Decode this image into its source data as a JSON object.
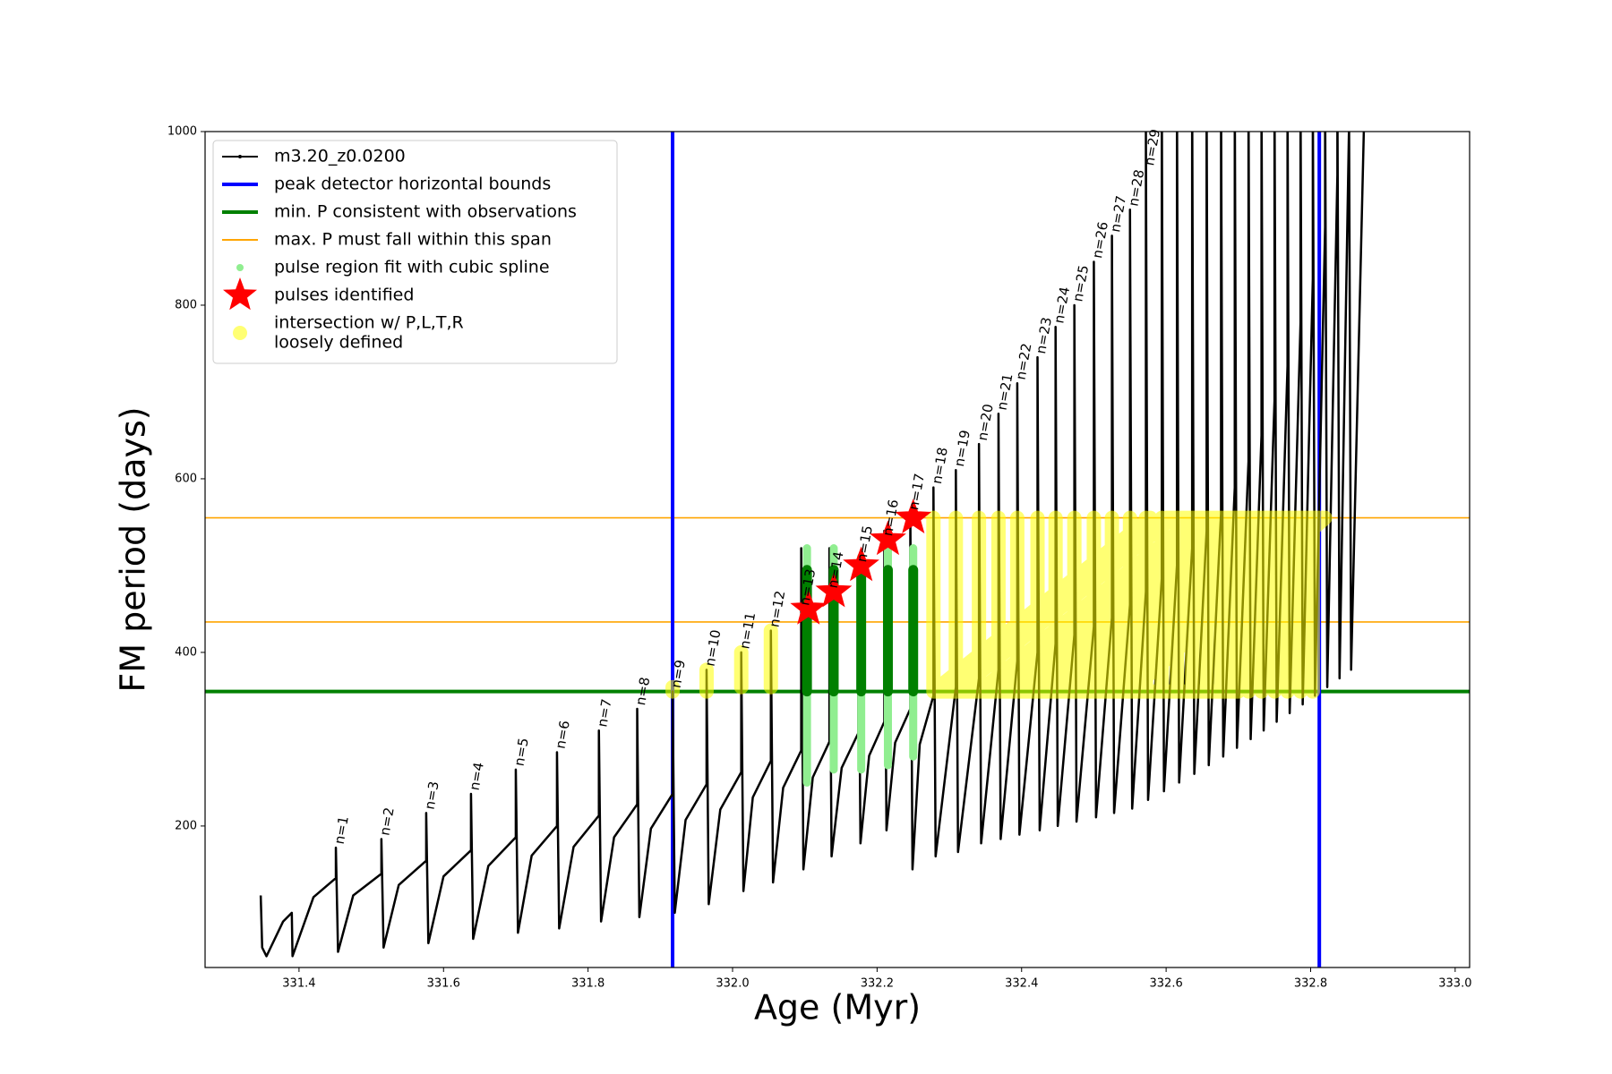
{
  "chart_data": {
    "type": "line",
    "xlabel": "Age (Myr)",
    "ylabel": "FM period (days)",
    "xlim": [
      331.27,
      333.02
    ],
    "ylim": [
      37,
      1000
    ],
    "xticks": [
      331.4,
      331.6,
      331.8,
      {
        "value": 332,
        "label": "332.0"
      },
      332.2,
      332.4,
      332.6,
      332.8,
      {
        "value": 333,
        "label": "333.0"
      }
    ],
    "yticks": [
      200,
      400,
      600,
      800,
      1000
    ],
    "legend": "upper left",
    "series": [
      {
        "name": "m3.20_z0.0200",
        "kind": "line",
        "color": "#000000",
        "x": [
          331.347,
          331.349,
          331.355,
          331.378,
          331.39,
          331.391,
          331.42,
          331.451,
          331.451,
          331.454,
          331.475,
          331.514,
          331.514,
          331.517,
          331.538,
          331.576,
          331.576,
          331.579,
          331.6,
          331.638,
          331.638,
          331.641,
          331.662,
          331.7,
          331.7,
          331.703,
          331.722,
          331.757,
          331.757,
          331.76,
          331.78,
          331.815,
          331.815,
          331.818,
          331.836,
          331.868,
          331.868,
          331.871,
          331.887,
          331.917,
          331.917,
          331.92,
          331.935,
          331.964,
          331.964,
          331.967,
          331.983,
          332.012,
          332.012,
          332.015,
          332.028,
          332.053,
          332.053,
          332.056,
          332.07,
          332.095,
          332.095,
          332.098,
          332.111,
          332.134,
          332.134,
          332.137,
          332.151,
          332.174,
          332.174,
          332.177,
          332.189,
          332.21,
          332.21,
          332.213,
          332.225,
          332.246,
          332.246,
          332.249,
          332.259,
          332.278,
          332.278,
          332.281,
          332.309,
          332.309,
          332.312,
          332.341,
          332.341,
          332.344,
          332.368,
          332.368,
          332.371,
          332.394,
          332.394,
          332.397,
          332.422,
          332.422,
          332.425,
          332.447,
          332.447,
          332.45,
          332.473,
          332.473,
          332.476,
          332.5,
          332.5,
          332.503,
          332.525,
          332.525,
          332.528,
          332.55,
          332.55,
          332.553,
          332.572,
          332.572,
          332.575,
          332.594,
          332.594,
          332.597,
          332.615,
          332.615,
          332.618,
          332.636,
          332.636,
          332.639,
          332.656,
          332.656,
          332.659,
          332.676,
          332.676,
          332.679,
          332.695,
          332.695,
          332.698,
          332.714,
          332.714,
          332.717,
          332.732,
          332.732,
          332.735,
          332.75,
          332.75,
          332.753,
          332.768,
          332.768,
          332.771,
          332.786,
          332.786,
          332.789,
          332.803,
          332.803,
          332.806,
          332.82,
          332.82,
          332.823,
          332.837,
          332.837,
          332.84,
          332.853,
          332.853,
          332.856,
          332.875
        ],
        "y": [
          120,
          60,
          50,
          90,
          100,
          50,
          118,
          140,
          175,
          55,
          120,
          145,
          185,
          60,
          132,
          160,
          215,
          65,
          142,
          172,
          237,
          70,
          154,
          187,
          265,
          77,
          166,
          200,
          285,
          82,
          176,
          212,
          310,
          90,
          187,
          225,
          335,
          95,
          197,
          237,
          355,
          100,
          207,
          248,
          380,
          110,
          219,
          262,
          400,
          125,
          233,
          275,
          425,
          135,
          244,
          287,
          520,
          150,
          256,
          297,
          520,
          165,
          267,
          307,
          500,
          180,
          281,
          320,
          540,
          195,
          296,
          335,
          560,
          150,
          294,
          350,
          590,
          165,
          360,
          610,
          170,
          370,
          640,
          180,
          380,
          675,
          185,
          390,
          710,
          190,
          400,
          740,
          195,
          410,
          775,
          200,
          420,
          800,
          205,
          430,
          850,
          210,
          440,
          880,
          215,
          455,
          910,
          220,
          470,
          1000,
          230,
          485,
          1050,
          240,
          500,
          1050,
          250,
          520,
          1050,
          260,
          540,
          1050,
          270,
          560,
          1050,
          280,
          590,
          1050,
          290,
          620,
          1050,
          300,
          650,
          1050,
          310,
          690,
          1050,
          320,
          730,
          1050,
          330,
          780,
          1050,
          340,
          830,
          1050,
          350,
          890,
          1050,
          360,
          950,
          1050,
          370,
          1000,
          1050,
          380,
          1050
        ]
      },
      {
        "name": "peak detector horizontal bounds",
        "kind": "vline",
        "color": "#0000ff",
        "x": [
          331.917,
          332.812
        ]
      },
      {
        "name": "min. P consistent with observations",
        "kind": "hline",
        "color": "#008000",
        "y": [
          355
        ]
      },
      {
        "name": "max. P must fall within this span",
        "kind": "hline",
        "color": "#ffa500",
        "y": [
          435,
          555
        ]
      },
      {
        "name": "pulse region fit with cubic spline",
        "kind": "segments",
        "marker": "dot",
        "color": "#90ee90",
        "x": [
          332.103,
          332.103,
          null,
          332.14,
          332.14,
          null,
          332.178,
          332.178,
          null,
          332.215,
          332.215,
          null,
          332.25,
          332.25
        ],
        "y": [
          250,
          520,
          null,
          265,
          520,
          null,
          265,
          510,
          null,
          270,
          520,
          null,
          280,
          520
        ]
      },
      {
        "name": "pulses identified",
        "kind": "star",
        "color": "#ff0000",
        "x": [
          332.105,
          332.14,
          332.178,
          332.215,
          332.25
        ],
        "y": [
          450,
          470,
          500,
          530,
          555
        ]
      },
      {
        "name": [
          "intersection w/ P,L,T,R",
          "loosely defined"
        ],
        "kind": "segments",
        "marker": "circle",
        "color": "#ffff00",
        "alpha": 0.55,
        "x": [
          331.917,
          331.917,
          null,
          331.964,
          331.964,
          null,
          332.012,
          332.012,
          null,
          332.053,
          332.053,
          null,
          332.278,
          332.278,
          null,
          332.309,
          332.309,
          null,
          332.341,
          332.341,
          null,
          332.368,
          332.368,
          null,
          332.394,
          332.394,
          null,
          332.422,
          332.422,
          null,
          332.447,
          332.447,
          null,
          332.473,
          332.473,
          null,
          332.5,
          332.5,
          null,
          332.525,
          332.525,
          null,
          332.55,
          332.55,
          null,
          332.572,
          332.572,
          null,
          332.594,
          332.594,
          null,
          332.615,
          332.615,
          null,
          332.636,
          332.636,
          null,
          332.656,
          332.656,
          null,
          332.676,
          332.676,
          null,
          332.695,
          332.695,
          null,
          332.714,
          332.714,
          null,
          332.732,
          332.732,
          null,
          332.75,
          332.75,
          null,
          332.768,
          332.768,
          null,
          332.786,
          332.786,
          null,
          332.803,
          332.803,
          null,
          332.278,
          332.578,
          null,
          332.309,
          332.609,
          null,
          332.341,
          332.641,
          null,
          332.368,
          332.668,
          null,
          332.394,
          332.694,
          null,
          332.422,
          332.722,
          null,
          332.447,
          332.747,
          null,
          332.473,
          332.773,
          null,
          332.5,
          332.8,
          null,
          332.525,
          332.82,
          null,
          332.55,
          332.82,
          null,
          332.278,
          332.7,
          null,
          332.6,
          332.82
        ],
        "y": [
          355,
          360,
          null,
          355,
          380,
          null,
          360,
          400,
          null,
          360,
          425,
          null,
          355,
          555,
          null,
          355,
          555,
          null,
          355,
          555,
          null,
          355,
          555,
          null,
          355,
          555,
          null,
          355,
          555,
          null,
          355,
          555,
          null,
          355,
          555,
          null,
          355,
          555,
          null,
          355,
          555,
          null,
          355,
          555,
          null,
          355,
          555,
          null,
          355,
          555,
          null,
          355,
          555,
          null,
          355,
          555,
          null,
          355,
          555,
          null,
          355,
          555,
          null,
          355,
          555,
          null,
          355,
          555,
          null,
          355,
          555,
          null,
          355,
          555,
          null,
          355,
          555,
          null,
          355,
          555,
          null,
          355,
          555,
          null,
          355,
          555,
          null,
          355,
          555,
          null,
          355,
          555,
          null,
          355,
          555,
          null,
          355,
          555,
          null,
          355,
          555,
          null,
          355,
          555,
          null,
          355,
          555,
          null,
          355,
          555,
          null,
          355,
          555,
          null,
          355,
          555,
          null,
          355,
          355,
          null,
          555,
          555
        ]
      },
      {
        "kind": "segments",
        "color": "#008000",
        "x": [
          332.103,
          332.103,
          null,
          332.14,
          332.14,
          null,
          332.178,
          332.178,
          null,
          332.215,
          332.215,
          null,
          332.25,
          332.25
        ],
        "y": [
          355,
          495,
          null,
          355,
          495,
          null,
          355,
          495,
          null,
          355,
          495,
          null,
          355,
          495
        ]
      }
    ],
    "annotations": [
      {
        "text": "n=1",
        "x": 331.451,
        "y": 175
      },
      {
        "text": "n=2",
        "x": 331.514,
        "y": 185
      },
      {
        "text": "n=3",
        "x": 331.576,
        "y": 215
      },
      {
        "text": "n=4",
        "x": 331.638,
        "y": 237
      },
      {
        "text": "n=5",
        "x": 331.7,
        "y": 265
      },
      {
        "text": "n=6",
        "x": 331.757,
        "y": 285
      },
      {
        "text": "n=7",
        "x": 331.815,
        "y": 310
      },
      {
        "text": "n=8",
        "x": 331.868,
        "y": 335
      },
      {
        "text": "n=9",
        "x": 331.917,
        "y": 355
      },
      {
        "text": "n=10",
        "x": 331.964,
        "y": 380
      },
      {
        "text": "n=11",
        "x": 332.012,
        "y": 400
      },
      {
        "text": "n=12",
        "x": 332.053,
        "y": 425
      },
      {
        "text": "n=13",
        "x": 332.095,
        "y": 450
      },
      {
        "text": "n=14",
        "x": 332.134,
        "y": 470
      },
      {
        "text": "n=15",
        "x": 332.174,
        "y": 500
      },
      {
        "text": "n=16",
        "x": 332.21,
        "y": 530
      },
      {
        "text": "n=17",
        "x": 332.246,
        "y": 560
      },
      {
        "text": "n=18",
        "x": 332.278,
        "y": 590
      },
      {
        "text": "n=19",
        "x": 332.309,
        "y": 610
      },
      {
        "text": "n=20",
        "x": 332.341,
        "y": 640
      },
      {
        "text": "n=21",
        "x": 332.368,
        "y": 675
      },
      {
        "text": "n=22",
        "x": 332.394,
        "y": 710
      },
      {
        "text": "n=23",
        "x": 332.422,
        "y": 740
      },
      {
        "text": "n=24",
        "x": 332.447,
        "y": 775
      },
      {
        "text": "n=25",
        "x": 332.473,
        "y": 800
      },
      {
        "text": "n=26",
        "x": 332.5,
        "y": 850
      },
      {
        "text": "n=27",
        "x": 332.525,
        "y": 880
      },
      {
        "text": "n=28",
        "x": 332.55,
        "y": 910
      },
      {
        "text": "n=29",
        "x": 332.572,
        "y": 1000
      }
    ]
  }
}
